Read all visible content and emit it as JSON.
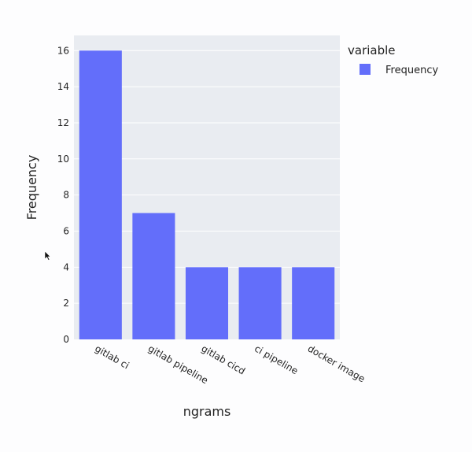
{
  "chart_data": {
    "type": "bar",
    "categories": [
      "gitlab ci",
      "gitlab pipeline",
      "gitlab cicd",
      "ci pipeline",
      "docker image"
    ],
    "series": [
      {
        "name": "Frequency",
        "values": [
          16,
          7,
          4,
          4,
          4
        ],
        "color": "#636efa"
      }
    ],
    "xlabel": "ngrams",
    "ylabel": "Frequency",
    "ylim": [
      0,
      16.84
    ],
    "yticks": [
      0,
      2,
      4,
      6,
      8,
      10,
      12,
      14,
      16
    ],
    "grid": true,
    "legend": {
      "title": "variable",
      "placement": "top-right"
    },
    "plot_bgcolor": "#e5ecf6"
  }
}
